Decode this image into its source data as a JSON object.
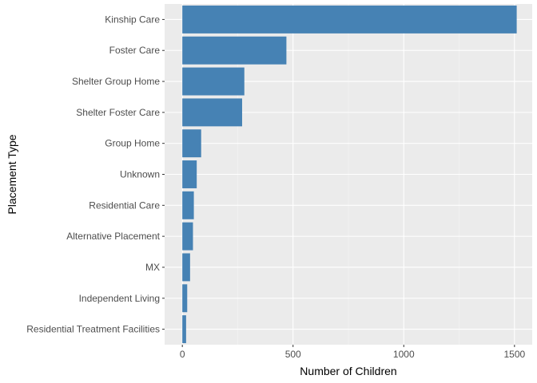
{
  "chart_data": {
    "type": "bar",
    "orientation": "horizontal",
    "title": "",
    "xlabel": "Number of Children",
    "ylabel": "Placement Type",
    "categories": [
      "Kinship Care",
      "Foster Care",
      "Shelter Group Home",
      "Shelter Foster Care",
      "Group Home",
      "Unknown",
      "Residential Care",
      "Alternative Placement",
      "MX",
      "Independent Living",
      "Residential Treatment Facilities"
    ],
    "values": [
      1510,
      470,
      280,
      270,
      85,
      65,
      52,
      48,
      35,
      22,
      17
    ],
    "xlim": [
      -80,
      1580
    ],
    "x_ticks": [
      0,
      500,
      1000,
      1500
    ],
    "x_tick_labels": [
      "0",
      "500",
      "1000",
      "1500"
    ],
    "grid": true,
    "legend": "none",
    "colors": {
      "bar": "#4682b4",
      "panel": "#ebebeb",
      "grid_major": "#ffffff",
      "grid_minor": "#f5f5f5"
    }
  }
}
